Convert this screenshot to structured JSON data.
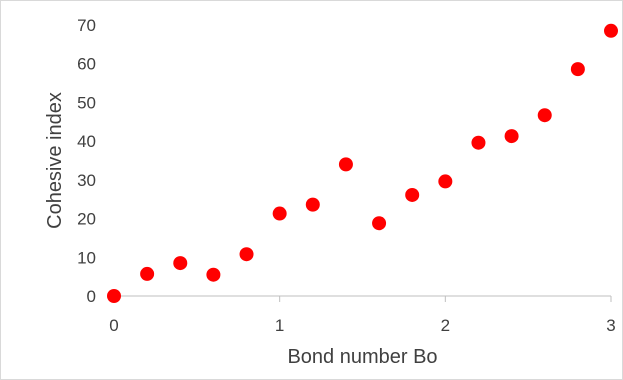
{
  "chart_data": {
    "type": "scatter",
    "title": "",
    "xlabel": "Bond number Bo",
    "ylabel": "Cohesive index",
    "xlim": [
      0,
      3
    ],
    "ylim": [
      0,
      70
    ],
    "x_ticks": [
      0,
      1,
      2,
      3
    ],
    "y_ticks": [
      0,
      10,
      20,
      30,
      40,
      50,
      60,
      70
    ],
    "grid": false,
    "legend": "none",
    "marker_color": "#ff0000",
    "axis_color": "#bfbfbf",
    "text_color": "#404040",
    "series": [
      {
        "x": [
          0,
          0.2,
          0.4,
          0.6,
          0.8,
          1.0,
          1.2,
          1.4,
          1.6,
          1.8,
          2.0,
          2.2,
          2.4,
          2.6,
          2.8,
          3.0
        ],
        "y": [
          0,
          5.7,
          8.5,
          5.5,
          10.8,
          21.3,
          23.6,
          34.0,
          18.8,
          26.1,
          29.6,
          39.6,
          41.3,
          46.7,
          58.6,
          68.5
        ]
      }
    ]
  }
}
